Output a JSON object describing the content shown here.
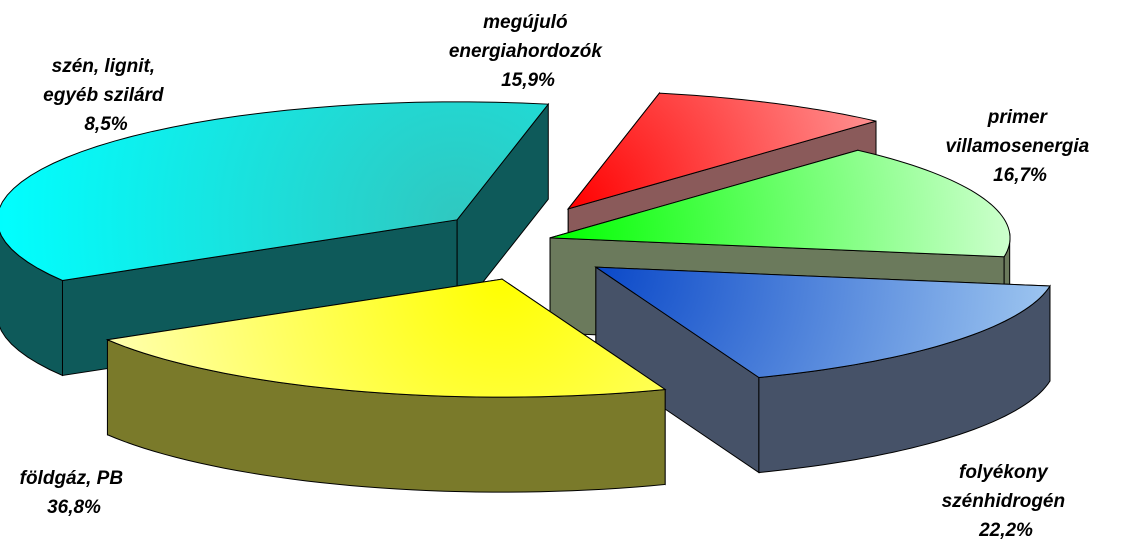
{
  "chart_data": {
    "type": "pie",
    "variant": "3d-exploded",
    "slices": [
      {
        "name_lines": [
          "megújuló",
          "energiahordozók"
        ],
        "value": 15.9,
        "value_label": "15,9%",
        "top_color": "#ccffcc",
        "top_color_inner": "#00ff00",
        "side_color": "#6b7a5c"
      },
      {
        "name_lines": [
          "primer",
          "villamosenergia"
        ],
        "value": 16.7,
        "value_label": "16,7%",
        "top_color": "#9ec6f0",
        "top_color_inner": "#0a48c8",
        "side_color": "#465268"
      },
      {
        "name_lines": [
          "folyékony",
          "szénhidrogén"
        ],
        "value": 22.2,
        "value_label": "22,2%",
        "top_color": "#ffffc8",
        "top_color_inner": "#ffff00",
        "side_color": "#7a7a2a"
      },
      {
        "name_lines": [
          "földgáz, PB"
        ],
        "value": 36.8,
        "value_label": "36,8%",
        "top_color": "#00ffff",
        "top_color_inner": "#30c8c0",
        "side_color": "#0e5a5a"
      },
      {
        "name_lines": [
          "szén, lignit,",
          "egyéb szilárd"
        ],
        "value": 8.5,
        "value_label": "8,5%",
        "top_color": "#ffd0d0",
        "top_color_inner": "#ff0000",
        "side_color": "#8a5a5a"
      }
    ]
  }
}
